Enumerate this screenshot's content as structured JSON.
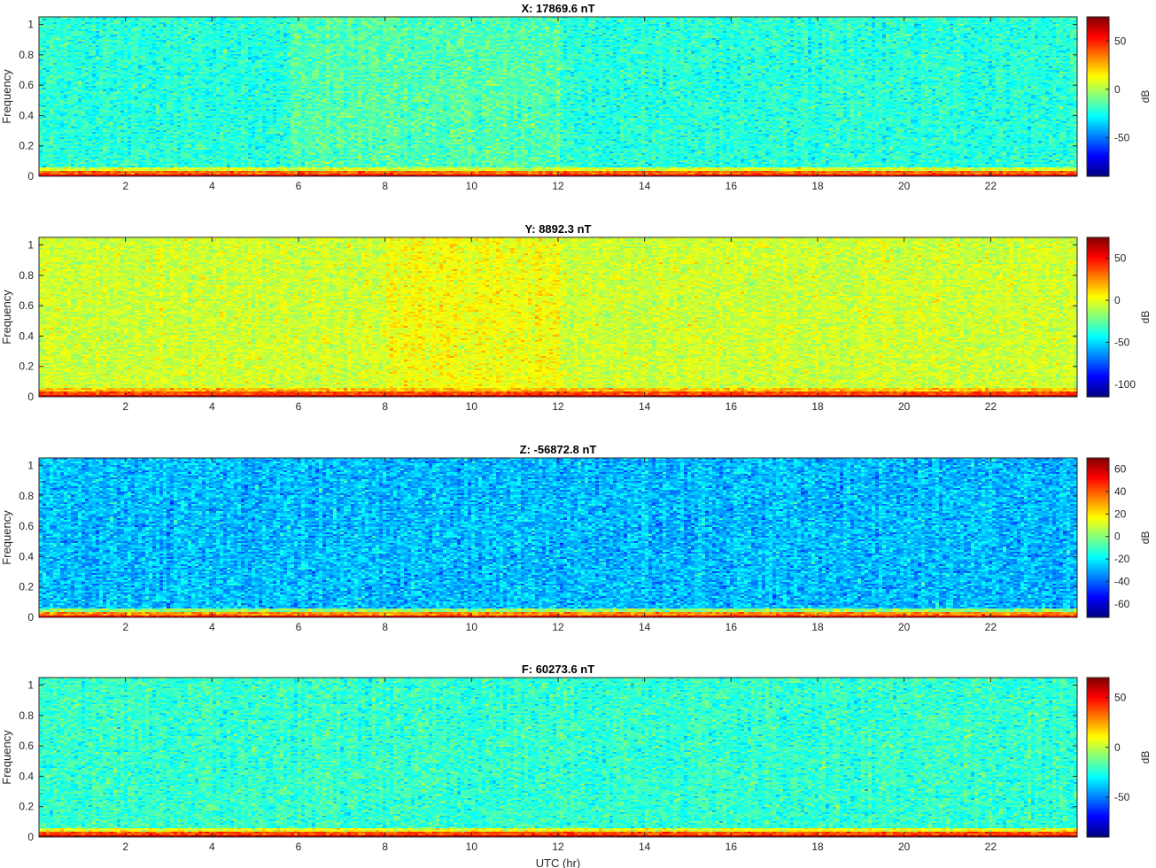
{
  "chart_data": [
    {
      "type": "heatmap",
      "title": "X: 17869.6 nT",
      "ylabel": "Frequency",
      "xlabel": "",
      "colorbar_label": "dB",
      "x_range": [
        0,
        24
      ],
      "y_range": [
        0,
        1.05
      ],
      "x_ticks": [
        2,
        4,
        6,
        8,
        10,
        12,
        14,
        16,
        18,
        20,
        22
      ],
      "y_ticks": [
        0,
        0.2,
        0.4,
        0.6,
        0.8,
        1
      ],
      "y_tick_labels": [
        "0",
        "0.2",
        "0.4",
        "0.6",
        "0.8",
        "1"
      ],
      "color_range": [
        -90,
        75
      ],
      "colorbar_ticks": [
        50,
        0,
        -50
      ],
      "colormap": "jet",
      "background_level_db": -22,
      "low_frequency_level_db": 60,
      "brighter_time_bands_hr": [
        [
          5.8,
          12
        ]
      ]
    },
    {
      "type": "heatmap",
      "title": "Y: 8892.3 nT",
      "ylabel": "Frequency",
      "xlabel": "",
      "colorbar_label": "dB",
      "x_range": [
        0,
        24
      ],
      "y_range": [
        0,
        1.05
      ],
      "x_ticks": [
        2,
        4,
        6,
        8,
        10,
        12,
        14,
        16,
        18,
        20,
        22
      ],
      "y_ticks": [
        0,
        0.2,
        0.4,
        0.6,
        0.8,
        1
      ],
      "y_tick_labels": [
        "0",
        "0.2",
        "0.4",
        "0.6",
        "0.8",
        "1"
      ],
      "color_range": [
        -115,
        75
      ],
      "colorbar_ticks": [
        50,
        0,
        -50,
        -100
      ],
      "colormap": "jet",
      "background_level_db": -5,
      "low_frequency_level_db": 60,
      "brighter_time_bands_hr": [
        [
          8,
          12
        ]
      ]
    },
    {
      "type": "heatmap",
      "title": "Z: -56872.8 nT",
      "ylabel": "Frequency",
      "xlabel": "",
      "colorbar_label": "dB",
      "x_range": [
        0,
        24
      ],
      "y_range": [
        0,
        1.05
      ],
      "x_ticks": [
        2,
        4,
        6,
        8,
        10,
        12,
        14,
        16,
        18,
        20,
        22
      ],
      "y_ticks": [
        0,
        0.2,
        0.4,
        0.6,
        0.8,
        1
      ],
      "y_tick_labels": [
        "0",
        "0.2",
        "0.4",
        "0.6",
        "0.8",
        "1"
      ],
      "color_range": [
        -72,
        70
      ],
      "colorbar_ticks": [
        60,
        40,
        20,
        0,
        -20,
        -40,
        -60
      ],
      "colormap": "jet",
      "background_level_db": -28,
      "low_frequency_level_db": 55,
      "brighter_time_bands_hr": []
    },
    {
      "type": "heatmap",
      "title": "F: 60273.6 nT",
      "ylabel": "Frequency",
      "xlabel": "UTC (hr)",
      "colorbar_label": "dB",
      "x_range": [
        0,
        24
      ],
      "y_range": [
        0,
        1.05
      ],
      "x_ticks": [
        2,
        4,
        6,
        8,
        10,
        12,
        14,
        16,
        18,
        20,
        22
      ],
      "y_ticks": [
        0,
        0.2,
        0.4,
        0.6,
        0.8,
        1
      ],
      "y_tick_labels": [
        "0",
        "0.2",
        "0.4",
        "0.6",
        "0.8",
        "1"
      ],
      "color_range": [
        -90,
        70
      ],
      "colorbar_ticks": [
        50,
        0,
        -50
      ],
      "colormap": "jet",
      "background_level_db": -22,
      "low_frequency_level_db": 60,
      "brighter_time_bands_hr": []
    }
  ]
}
